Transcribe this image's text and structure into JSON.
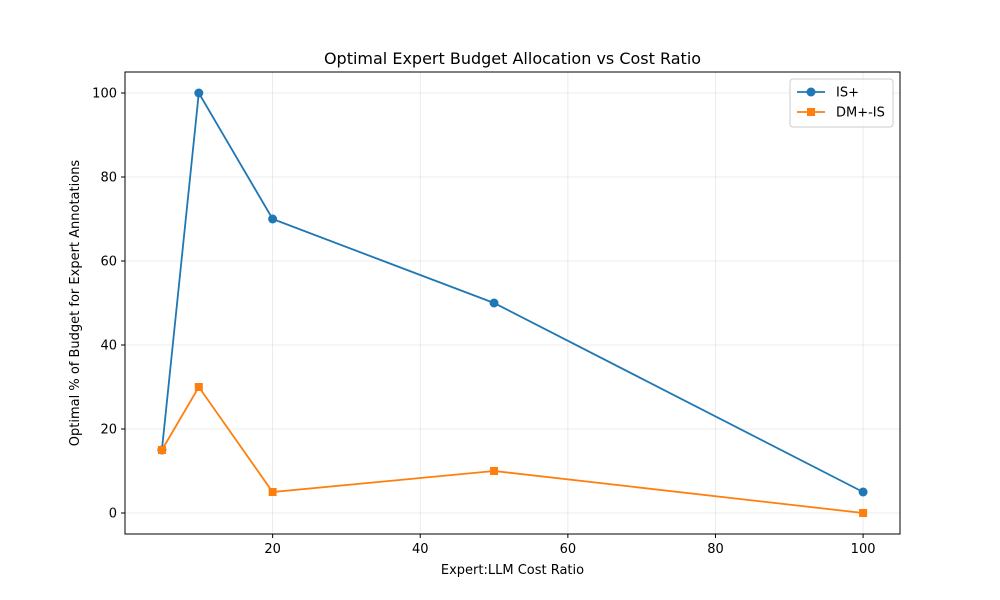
{
  "chart_data": {
    "type": "line",
    "title": "Optimal Expert Budget Allocation vs Cost Ratio",
    "xlabel": "Expert:LLM Cost Ratio",
    "ylabel": "Optimal % of Budget for Expert Annotations",
    "xlim": [
      0,
      105
    ],
    "ylim": [
      -5,
      105
    ],
    "xticks": [
      20,
      40,
      60,
      80,
      100
    ],
    "yticks": [
      0,
      20,
      40,
      60,
      80,
      100
    ],
    "grid": true,
    "legend_position": "top-right",
    "series": [
      {
        "name": "IS+",
        "marker": "circle",
        "color": "#1f77b4",
        "x": [
          5,
          10,
          20,
          50,
          100
        ],
        "y": [
          15,
          100,
          70,
          50,
          5
        ]
      },
      {
        "name": "DM+-IS",
        "marker": "square",
        "color": "#ff7f0e",
        "x": [
          5,
          10,
          20,
          50,
          100
        ],
        "y": [
          15,
          30,
          5,
          10,
          0
        ]
      }
    ]
  }
}
